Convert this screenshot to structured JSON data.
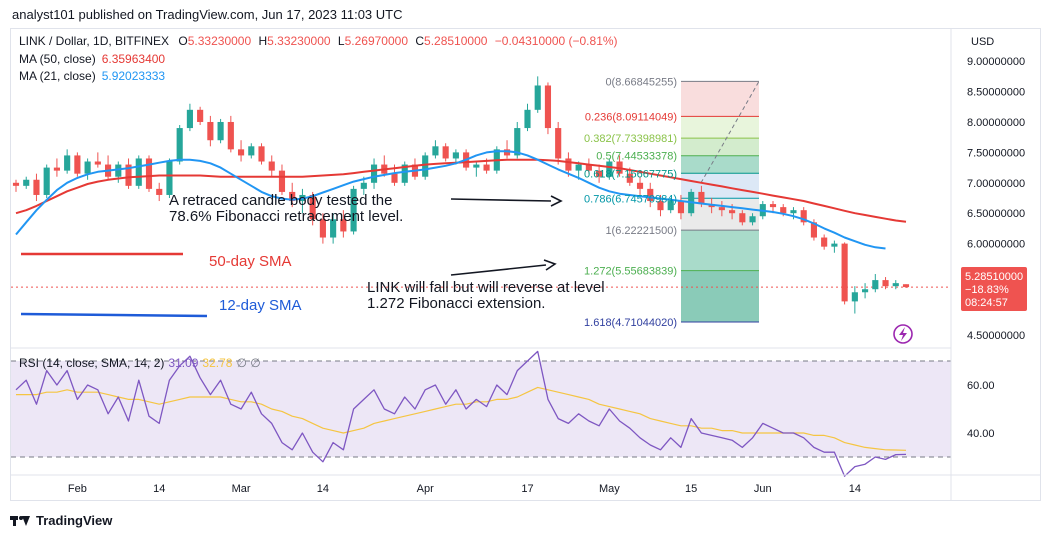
{
  "header": {
    "published": "analyst101 published on TradingView.com, Jun 17, 2023 11:03 UTC"
  },
  "legend": {
    "symbol": "LINK / Dollar, 1D, BITFINEX",
    "open_label": "O",
    "open": "5.33230000",
    "high_label": "H",
    "high": "5.33230000",
    "low_label": "L",
    "low": "5.26970000",
    "close_label": "C",
    "close": "5.28510000",
    "change": "−0.04310000 (−0.81%)",
    "ma50_label": "MA (50, close)",
    "ma50_value": "6.35963400",
    "ma21_label": "MA (21, close)",
    "ma21_value": "5.92023333",
    "rsi_label": "RSI (14, close, SMA, 14, 2)",
    "rsi_value": "31.09",
    "rsi_sma_value": "32.78",
    "rsi_extra": "∅ ∅"
  },
  "currency": "USD",
  "price_badge": {
    "price": "5.28510000",
    "change": "−18.83%",
    "timer": "08:24:57"
  },
  "colors": {
    "up": "#26a69a",
    "down": "#ef5350",
    "ma50": "#e53935",
    "ma21": "#2196f3",
    "rsi": "#7e57c2",
    "rsi_sma": "#f5c542",
    "rsi_band": "#ede7f6",
    "fib_red": "#f8d7d7",
    "fib_green": "#cbe9c4",
    "fib_lightgreen": "#e4f3d6",
    "fib_grey": "#e6e6e6",
    "fib_blue": "#d6e4f5",
    "fib_teal": "#9ad5c1",
    "fib_darkteal": "#75c2ac",
    "badge": "#ef5350"
  },
  "annotations": {
    "retrace_line1": "A retraced candle body tested the",
    "retrace_line2": "78.6% Fibonacci retracement level.",
    "sma50_label": "50-day SMA",
    "sma12_label": "12-day SMA",
    "fall_line1": "LINK  will fall but will reverse at level",
    "fall_line2": "1.272 Fibonacci extension."
  },
  "footer": {
    "brand": "TradingView"
  },
  "chart_data": {
    "type": "candlestick",
    "x_ticks": [
      "Feb",
      "14",
      "Mar",
      "14",
      "Apr",
      "17",
      "May",
      "15",
      "Jun",
      "14"
    ],
    "y_ticks": [
      "9.00000000",
      "8.50000000",
      "8.00000000",
      "7.50000000",
      "7.00000000",
      "6.50000000",
      "6.00000000",
      "5.50000000",
      "4.50000000"
    ],
    "y_range": [
      4.3,
      9.2
    ],
    "rsi_ticks": [
      "60.00",
      "40.00"
    ],
    "rsi_range": [
      25,
      75
    ],
    "rsi_band": [
      30,
      70
    ],
    "fib_levels": [
      {
        "ratio": "0",
        "value": "8.66845255",
        "color": "#787b86"
      },
      {
        "ratio": "0.236",
        "value": "8.09114049",
        "color": "#e53935"
      },
      {
        "ratio": "0.382",
        "value": "7.73398981",
        "color": "#8bc34a"
      },
      {
        "ratio": "0.5",
        "value": "7.44533378",
        "color": "#4caf50"
      },
      {
        "ratio": "0.618",
        "value": "7.15667775",
        "color": "#009688"
      },
      {
        "ratio": "0.786",
        "value": "6.74570984",
        "color": "#0097a7"
      },
      {
        "ratio": "1",
        "value": "6.22221500",
        "color": "#787b86"
      },
      {
        "ratio": "1.272",
        "value": "5.55683839",
        "color": "#4caf50"
      },
      {
        "ratio": "1.618",
        "value": "4.71044020",
        "color": "#303f9f"
      }
    ],
    "candles": [
      [
        7.0,
        7.05,
        6.85,
        6.95
      ],
      [
        6.95,
        7.1,
        6.9,
        7.05
      ],
      [
        7.05,
        7.15,
        6.7,
        6.8
      ],
      [
        6.8,
        7.3,
        6.75,
        7.25
      ],
      [
        7.25,
        7.4,
        7.1,
        7.2
      ],
      [
        7.2,
        7.55,
        7.15,
        7.45
      ],
      [
        7.45,
        7.5,
        7.1,
        7.15
      ],
      [
        7.15,
        7.4,
        7.05,
        7.35
      ],
      [
        7.35,
        7.5,
        7.25,
        7.3
      ],
      [
        7.3,
        7.45,
        7.05,
        7.1
      ],
      [
        7.1,
        7.35,
        7.0,
        7.3
      ],
      [
        7.3,
        7.4,
        6.9,
        6.95
      ],
      [
        6.95,
        7.45,
        6.9,
        7.4
      ],
      [
        7.4,
        7.45,
        6.85,
        6.9
      ],
      [
        6.9,
        7.0,
        6.7,
        6.8
      ],
      [
        6.8,
        7.4,
        6.75,
        7.35
      ],
      [
        7.35,
        7.95,
        7.3,
        7.9
      ],
      [
        7.9,
        8.3,
        7.85,
        8.2
      ],
      [
        8.2,
        8.25,
        7.95,
        8.0
      ],
      [
        8.0,
        8.1,
        7.6,
        7.7
      ],
      [
        7.7,
        8.05,
        7.65,
        8.0
      ],
      [
        8.0,
        8.1,
        7.5,
        7.55
      ],
      [
        7.55,
        7.7,
        7.35,
        7.45
      ],
      [
        7.45,
        7.65,
        7.4,
        7.6
      ],
      [
        7.6,
        7.65,
        7.3,
        7.35
      ],
      [
        7.35,
        7.45,
        7.1,
        7.2
      ],
      [
        7.2,
        7.3,
        6.8,
        6.85
      ],
      [
        6.85,
        7.0,
        6.6,
        6.7
      ],
      [
        6.7,
        6.9,
        6.5,
        6.8
      ],
      [
        6.8,
        6.85,
        6.3,
        6.4
      ],
      [
        6.4,
        6.5,
        6.0,
        6.1
      ],
      [
        6.1,
        6.5,
        6.0,
        6.4
      ],
      [
        6.4,
        6.55,
        6.1,
        6.2
      ],
      [
        6.2,
        6.95,
        6.15,
        6.9
      ],
      [
        6.9,
        7.1,
        6.8,
        7.0
      ],
      [
        7.0,
        7.4,
        6.9,
        7.3
      ],
      [
        7.3,
        7.45,
        7.1,
        7.15
      ],
      [
        7.15,
        7.3,
        6.95,
        7.0
      ],
      [
        7.0,
        7.35,
        6.95,
        7.3
      ],
      [
        7.3,
        7.4,
        7.05,
        7.1
      ],
      [
        7.1,
        7.5,
        7.05,
        7.45
      ],
      [
        7.45,
        7.7,
        7.4,
        7.6
      ],
      [
        7.6,
        7.65,
        7.35,
        7.4
      ],
      [
        7.4,
        7.55,
        7.3,
        7.5
      ],
      [
        7.5,
        7.55,
        7.2,
        7.25
      ],
      [
        7.25,
        7.35,
        7.1,
        7.3
      ],
      [
        7.3,
        7.4,
        7.15,
        7.2
      ],
      [
        7.2,
        7.6,
        7.15,
        7.55
      ],
      [
        7.55,
        7.7,
        7.4,
        7.45
      ],
      [
        7.45,
        8.0,
        7.4,
        7.9
      ],
      [
        7.9,
        8.3,
        7.85,
        8.2
      ],
      [
        8.2,
        8.75,
        8.15,
        8.6
      ],
      [
        8.6,
        8.65,
        7.8,
        7.9
      ],
      [
        7.9,
        8.0,
        7.3,
        7.4
      ],
      [
        7.4,
        7.5,
        7.1,
        7.2
      ],
      [
        7.2,
        7.35,
        7.05,
        7.3
      ],
      [
        7.3,
        7.4,
        7.15,
        7.2
      ],
      [
        7.2,
        7.3,
        7.0,
        7.1
      ],
      [
        7.1,
        7.4,
        7.05,
        7.35
      ],
      [
        7.35,
        7.45,
        7.1,
        7.15
      ],
      [
        7.15,
        7.25,
        6.95,
        7.0
      ],
      [
        7.0,
        7.1,
        6.8,
        6.9
      ],
      [
        6.9,
        7.0,
        6.6,
        6.7
      ],
      [
        6.7,
        6.8,
        6.45,
        6.55
      ],
      [
        6.55,
        6.75,
        6.5,
        6.7
      ],
      [
        6.7,
        6.8,
        6.4,
        6.5
      ],
      [
        6.5,
        6.9,
        6.45,
        6.85
      ],
      [
        6.85,
        6.95,
        6.6,
        6.65
      ],
      [
        6.65,
        6.75,
        6.5,
        6.6
      ],
      [
        6.6,
        6.7,
        6.45,
        6.55
      ],
      [
        6.55,
        6.65,
        6.4,
        6.5
      ],
      [
        6.5,
        6.55,
        6.3,
        6.35
      ],
      [
        6.35,
        6.5,
        6.3,
        6.45
      ],
      [
        6.45,
        6.7,
        6.4,
        6.65
      ],
      [
        6.65,
        6.7,
        6.5,
        6.6
      ],
      [
        6.6,
        6.65,
        6.45,
        6.5
      ],
      [
        6.5,
        6.6,
        6.4,
        6.55
      ],
      [
        6.55,
        6.6,
        6.3,
        6.35
      ],
      [
        6.35,
        6.4,
        6.05,
        6.1
      ],
      [
        6.1,
        6.15,
        5.9,
        5.95
      ],
      [
        5.95,
        6.05,
        5.85,
        6.0
      ],
      [
        6.0,
        6.02,
        5.0,
        5.05
      ],
      [
        5.05,
        5.3,
        4.85,
        5.2
      ],
      [
        5.2,
        5.35,
        5.1,
        5.25
      ],
      [
        5.25,
        5.5,
        5.2,
        5.4
      ],
      [
        5.4,
        5.45,
        5.25,
        5.3
      ],
      [
        5.3,
        5.4,
        5.25,
        5.35
      ],
      [
        5.3323,
        5.3323,
        5.2697,
        5.2851
      ]
    ],
    "ma50": [
      6.5,
      6.55,
      6.62,
      6.7,
      6.78,
      6.86,
      6.92,
      6.98,
      7.02,
      7.05,
      7.07,
      7.09,
      7.1,
      7.11,
      7.12,
      7.12,
      7.12,
      7.12,
      7.12,
      7.11,
      7.1,
      7.1,
      7.1,
      7.1,
      7.1,
      7.1,
      7.1,
      7.1,
      7.1,
      7.11,
      7.12,
      7.13,
      7.14,
      7.16,
      7.18,
      7.2,
      7.22,
      7.24,
      7.26,
      7.28,
      7.3,
      7.31,
      7.32,
      7.33,
      7.34,
      7.35,
      7.36,
      7.37,
      7.38,
      7.38,
      7.38,
      7.38,
      7.37,
      7.36,
      7.34,
      7.32,
      7.3,
      7.28,
      7.26,
      7.24,
      7.21,
      7.18,
      7.15,
      7.12,
      7.09,
      7.06,
      7.03,
      7.0,
      6.97,
      6.94,
      6.91,
      6.88,
      6.85,
      6.82,
      6.79,
      6.76,
      6.73,
      6.7,
      6.66,
      6.62,
      6.58,
      6.54,
      6.5,
      6.47,
      6.44,
      6.41,
      6.38,
      6.36
    ],
    "ma21": [
      6.15,
      6.35,
      6.55,
      6.72,
      6.88,
      7.0,
      7.08,
      7.14,
      7.18,
      7.2,
      7.22,
      7.24,
      7.27,
      7.3,
      7.33,
      7.36,
      7.38,
      7.38,
      7.36,
      7.32,
      7.25,
      7.15,
      7.05,
      6.95,
      6.85,
      6.78,
      6.74,
      6.72,
      6.74,
      6.78,
      6.84,
      6.9,
      6.96,
      7.02,
      7.06,
      7.1,
      7.13,
      7.16,
      7.18,
      7.2,
      7.22,
      7.25,
      7.28,
      7.32,
      7.38,
      7.45,
      7.5,
      7.52,
      7.52,
      7.5,
      7.45,
      7.38,
      7.3,
      7.22,
      7.15,
      7.08,
      7.0,
      6.92,
      6.86,
      6.82,
      6.8,
      6.78,
      6.76,
      6.74,
      6.72,
      6.7,
      6.68,
      6.66,
      6.64,
      6.62,
      6.6,
      6.58,
      6.56,
      6.54,
      6.52,
      6.49,
      6.45,
      6.4,
      6.33,
      6.25,
      6.18,
      6.1,
      6.04,
      5.98,
      5.94,
      5.92
    ],
    "rsi": [
      58,
      62,
      52,
      66,
      60,
      66,
      54,
      60,
      58,
      48,
      55,
      45,
      62,
      47,
      44,
      62,
      68,
      72,
      63,
      56,
      62,
      52,
      50,
      57,
      48,
      44,
      36,
      33,
      40,
      32,
      28,
      36,
      33,
      50,
      54,
      58,
      50,
      48,
      55,
      50,
      58,
      60,
      52,
      58,
      50,
      54,
      51,
      60,
      56,
      66,
      70,
      74,
      54,
      46,
      44,
      48,
      45,
      43,
      50,
      45,
      42,
      38,
      35,
      33,
      38,
      34,
      46,
      40,
      39,
      38,
      37,
      34,
      38,
      44,
      42,
      40,
      40,
      38,
      34,
      32,
      32,
      22,
      26,
      27,
      30,
      29,
      31,
      31.09
    ],
    "rsi_sma": [
      56,
      56,
      56,
      57,
      57,
      58,
      57,
      57,
      57,
      56,
      55,
      54,
      54,
      53,
      52,
      53,
      54,
      55,
      55,
      55,
      55,
      54,
      53,
      53,
      52,
      50,
      49,
      47,
      46,
      44,
      42,
      41,
      40,
      41,
      42,
      44,
      45,
      46,
      47,
      48,
      49,
      50,
      51,
      52,
      52,
      53,
      53,
      54,
      54,
      55,
      57,
      59,
      58,
      57,
      56,
      55,
      54,
      52,
      51,
      50,
      49,
      48,
      46,
      45,
      44,
      43,
      43,
      42,
      42,
      41,
      41,
      40,
      40,
      40,
      40,
      40,
      40,
      40,
      39,
      39,
      38,
      36,
      35,
      34,
      33.5,
      33,
      32.9,
      32.78
    ]
  }
}
